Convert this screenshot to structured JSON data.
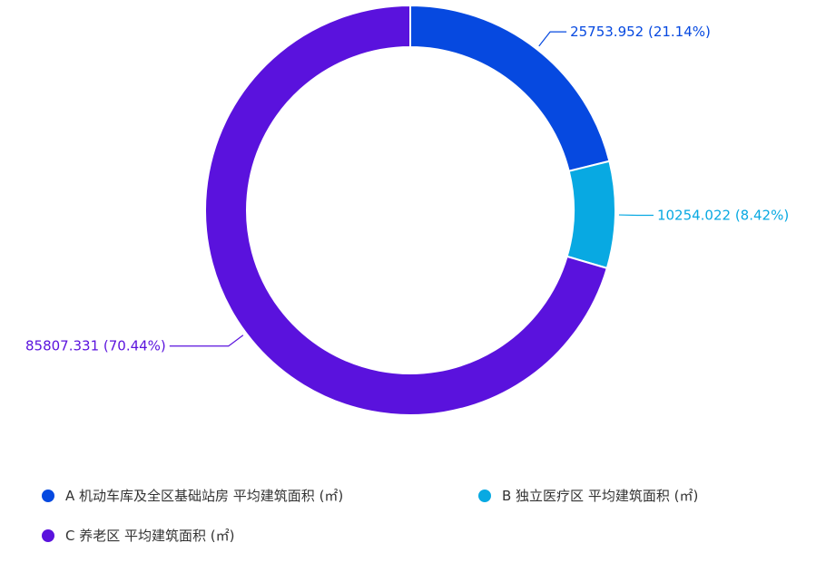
{
  "chart_data": {
    "type": "pie",
    "variant": "donut",
    "slices": [
      {
        "legend": "A 机动车库及全区基础站房 平均建筑面积 (㎡)",
        "value": 25753.952,
        "percent": 21.14,
        "label": "25753.952 (21.14%)",
        "color": "#0649e0"
      },
      {
        "legend": "B 独立医疗区 平均建筑面积 (㎡)",
        "value": 10254.022,
        "percent": 8.42,
        "label": "10254.022 (8.42%)",
        "color": "#08a9e2"
      },
      {
        "legend": "C 养老区 平均建筑面积 (㎡)",
        "value": 85807.331,
        "percent": 70.44,
        "label": "85807.331 (70.44%)",
        "color": "#5a12dd"
      }
    ],
    "legend_position": "bottom-left"
  }
}
